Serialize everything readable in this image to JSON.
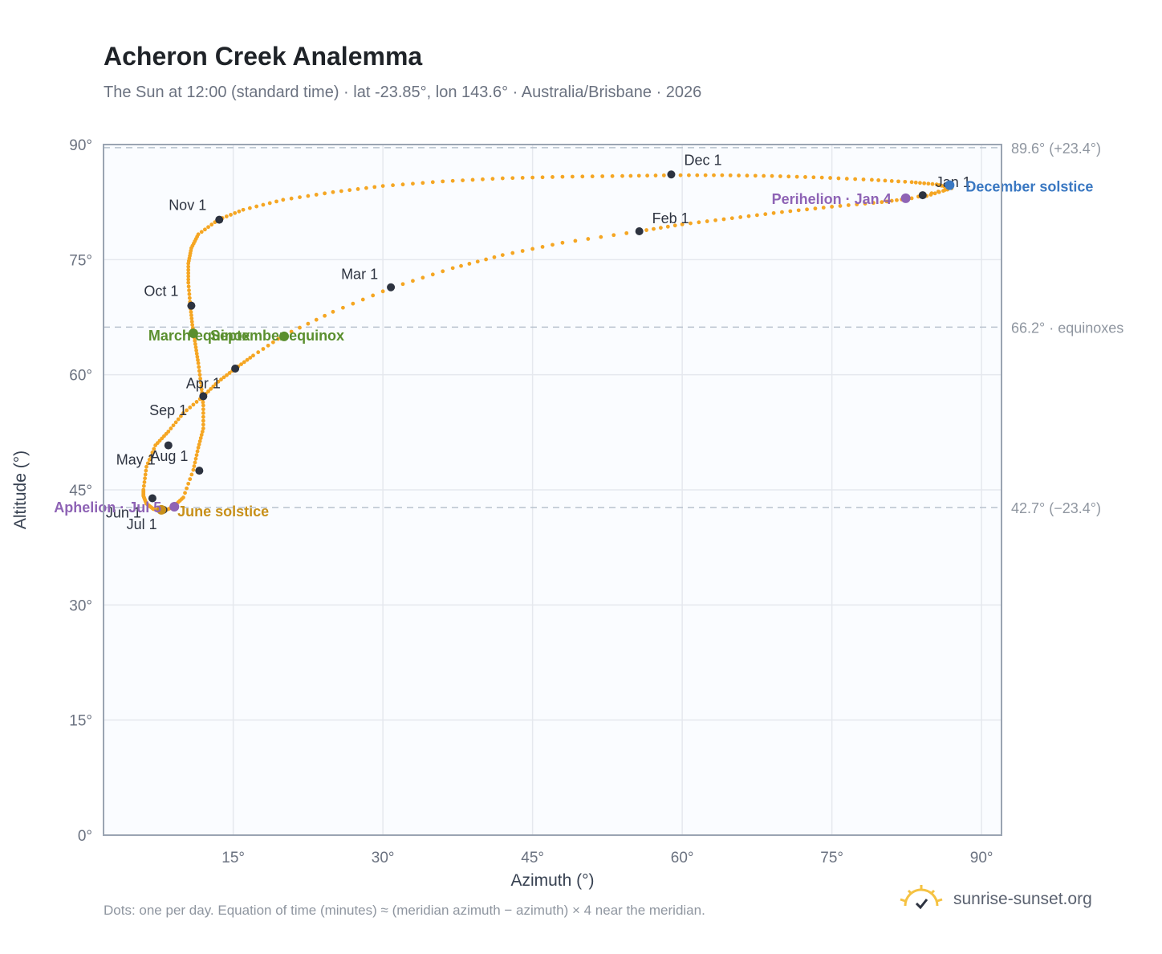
{
  "title": "Acheron Creek Analemma",
  "subtitle": "The Sun at 12:00 (standard time) · lat -23.85°, lon 143.6° · Australia/Brisbane · 2026",
  "footnote": "Dots: one per day. Equation of time (minutes) ≈ (meridian azimuth − azimuth) × 4 near the meridian.",
  "brand": {
    "name": "sunrise-sunset.org",
    "icon": "sun-logo-icon",
    "color": "#f5c242"
  },
  "colors": {
    "path": "#f5a623",
    "month": "#2d3340",
    "equinox": "#5a8f2e",
    "june": "#c8901a",
    "december": "#3a78c2",
    "apsis": "#8e63b5",
    "grid": "#e5e8ee",
    "frame": "#9aa4b2",
    "plot_bg": "#fafcff",
    "ref_line": "#b8c2ce"
  },
  "chart_data": {
    "type": "scatter",
    "xlabel": "Azimuth (°)",
    "ylabel": "Altitude (°)",
    "xlim": [
      2,
      92
    ],
    "ylim": [
      0,
      90
    ],
    "xticks": [
      15,
      30,
      45,
      60,
      75,
      90
    ],
    "yticks": [
      0,
      15,
      30,
      45,
      60,
      75,
      90
    ],
    "tick_suffix": "°",
    "grid": true,
    "path_points": [
      [
        84.5,
        83.3
      ],
      [
        87.0,
        84.3
      ],
      [
        83.0,
        83.0
      ],
      [
        80.0,
        82.5
      ],
      [
        75.0,
        81.9
      ],
      [
        70.0,
        81.2
      ],
      [
        65.0,
        80.4
      ],
      [
        60.0,
        79.6
      ],
      [
        55.7,
        78.7
      ],
      [
        48.0,
        77.2
      ],
      [
        42.0,
        75.6
      ],
      [
        37.0,
        73.9
      ],
      [
        31.0,
        71.4
      ],
      [
        25.0,
        68.2
      ],
      [
        20.0,
        65.1
      ],
      [
        17.0,
        62.5
      ],
      [
        15.2,
        60.8
      ],
      [
        13.5,
        59.1
      ],
      [
        12.0,
        57.2
      ],
      [
        10.0,
        55.0
      ],
      [
        8.5,
        52.6
      ],
      [
        7.2,
        50.8
      ],
      [
        6.3,
        48.0
      ],
      [
        6.0,
        45.0
      ],
      [
        6.0,
        44.2
      ],
      [
        6.3,
        43.2
      ],
      [
        7.0,
        42.5
      ],
      [
        8.0,
        42.2
      ],
      [
        9.0,
        42.8
      ],
      [
        10.0,
        44.0
      ],
      [
        11.0,
        47.6
      ],
      [
        11.5,
        50.5
      ],
      [
        12.0,
        53.0
      ],
      [
        12.0,
        56.0
      ],
      [
        11.8,
        58.5
      ],
      [
        11.5,
        61.5
      ],
      [
        11.2,
        64.0
      ],
      [
        10.9,
        66.5
      ],
      [
        10.7,
        69.0
      ],
      [
        10.5,
        72.0
      ],
      [
        10.5,
        74.5
      ],
      [
        10.8,
        76.5
      ],
      [
        11.5,
        78.3
      ],
      [
        13.5,
        80.2
      ],
      [
        16.0,
        81.5
      ],
      [
        20.0,
        82.8
      ],
      [
        25.0,
        83.8
      ],
      [
        30.0,
        84.6
      ],
      [
        36.0,
        85.2
      ],
      [
        42.0,
        85.6
      ],
      [
        48.0,
        85.8
      ],
      [
        54.0,
        85.9
      ],
      [
        59.0,
        86.0
      ],
      [
        64.0,
        86.0
      ],
      [
        69.0,
        85.9
      ],
      [
        74.0,
        85.7
      ],
      [
        79.0,
        85.4
      ],
      [
        83.0,
        85.1
      ],
      [
        85.5,
        84.8
      ],
      [
        87.0,
        84.3
      ]
    ],
    "month_markers": [
      {
        "label": "Jan 1",
        "az": 84.1,
        "alt": 83.4
      },
      {
        "label": "Feb 1",
        "az": 55.7,
        "alt": 78.7
      },
      {
        "label": "Mar 1",
        "az": 30.8,
        "alt": 71.4
      },
      {
        "label": "Apr 1",
        "az": 12.0,
        "alt": 57.2
      },
      {
        "label": "May 1",
        "az": 8.5,
        "alt": 50.8
      },
      {
        "label": "Jun 1",
        "az": 6.9,
        "alt": 43.9
      },
      {
        "label": "Jul 1",
        "az": 8.0,
        "alt": 42.4
      },
      {
        "label": "Aug 1",
        "az": 11.6,
        "alt": 47.5
      },
      {
        "label": "Sep 1",
        "az": 15.2,
        "alt": 60.8
      },
      {
        "label": "Oct 1",
        "az": 10.8,
        "alt": 69.0
      },
      {
        "label": "Nov 1",
        "az": 13.6,
        "alt": 80.2
      },
      {
        "label": "Dec 1",
        "az": 58.9,
        "alt": 86.1
      }
    ],
    "events": [
      {
        "label": "March equinox",
        "az": 11.0,
        "alt": 65.4,
        "color_key": "equinox"
      },
      {
        "label": "September equinox",
        "az": 20.1,
        "alt": 65.0,
        "color_key": "equinox"
      },
      {
        "label": "June solstice",
        "az": 7.8,
        "alt": 42.4,
        "color_key": "june"
      },
      {
        "label": "December solstice",
        "az": 86.8,
        "alt": 84.7,
        "color_key": "december"
      },
      {
        "label": "Aphelion · Jul 5",
        "az": 9.1,
        "alt": 42.8,
        "color_key": "apsis"
      },
      {
        "label": "Perihelion · Jan 4",
        "az": 82.4,
        "alt": 83.0,
        "color_key": "apsis"
      }
    ],
    "reference_lines": [
      {
        "alt": 89.6,
        "label": "89.6° (+23.4°)"
      },
      {
        "alt": 66.2,
        "label": "66.2° · equinoxes"
      },
      {
        "alt": 42.7,
        "label": "42.7° (−23.4°)"
      }
    ]
  }
}
